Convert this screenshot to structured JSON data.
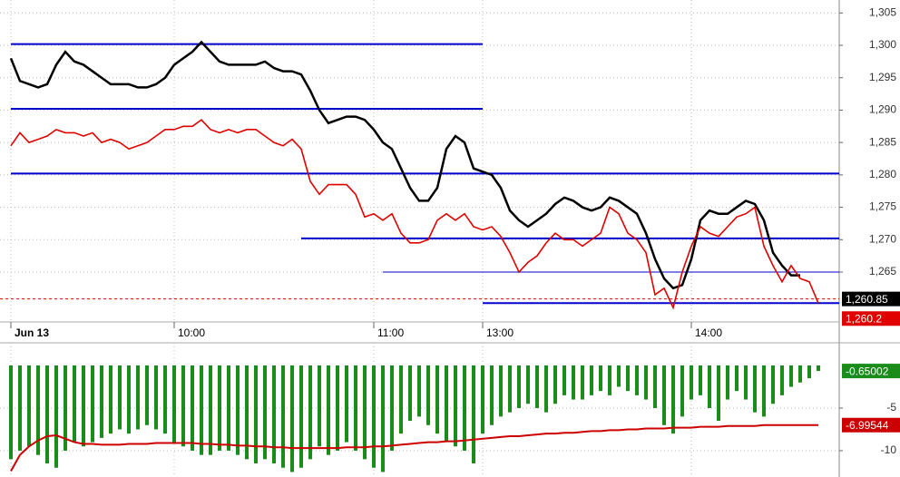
{
  "chart_data": [
    {
      "type": "line",
      "categories": [
        "Jun 13",
        null,
        null,
        null,
        null,
        null,
        null,
        null,
        null,
        null,
        null,
        null,
        null,
        null,
        null,
        null,
        null,
        null,
        "10:00",
        null,
        null,
        null,
        null,
        null,
        null,
        null,
        null,
        null,
        null,
        null,
        null,
        null,
        null,
        null,
        null,
        null,
        null,
        null,
        null,
        null,
        "11:00",
        null,
        null,
        null,
        null,
        null,
        null,
        null,
        null,
        null,
        null,
        null,
        "13:00",
        null,
        null,
        null,
        null,
        null,
        null,
        null,
        null,
        null,
        null,
        null,
        null,
        null,
        null,
        null,
        null,
        null,
        null,
        null,
        null,
        null,
        null,
        "14:00",
        null,
        null,
        null,
        null,
        null,
        null,
        null,
        null,
        null,
        null,
        null,
        null,
        null,
        null
      ],
      "series": [
        {
          "color": "#000000",
          "values": [
            1298,
            1294.5,
            1294,
            1293.5,
            1294,
            1297,
            1299,
            1297.5,
            1297,
            1296,
            1295,
            1294,
            1294,
            1294,
            1293.5,
            1293.5,
            1294,
            1295,
            1297,
            1298,
            1299,
            1300.5,
            1299,
            1297.5,
            1297,
            1297,
            1297,
            1297,
            1297.5,
            1296.5,
            1296,
            1296,
            1295.5,
            1293,
            1290,
            1288,
            1288.5,
            1289,
            1289,
            1288.5,
            1287,
            1285,
            1284,
            1281,
            1278,
            1276,
            1276,
            1278,
            1284,
            1286,
            1285,
            1281,
            1280.5,
            1280,
            1278,
            1274.5,
            1273,
            1272,
            1273,
            1274,
            1275.5,
            1276.5,
            1276,
            1275,
            1274.5,
            1275,
            1276.5,
            1276,
            1275,
            1274,
            1271,
            1267,
            1264,
            1262.5,
            1263,
            1267,
            1273,
            1274.5,
            1274,
            1274,
            1275,
            1276,
            1275.5,
            1273,
            1268,
            1266,
            1264.5,
            1264.5,
            null,
            null
          ]
        },
        {
          "color": "#e00000",
          "values": [
            1284.5,
            1286.5,
            1285,
            1285.5,
            1286,
            1287,
            1286.5,
            1286.5,
            1286,
            1286.5,
            1285,
            1285.5,
            1285,
            1284,
            1284.5,
            1285,
            1286,
            1287,
            1287,
            1287.5,
            1287.5,
            1288.5,
            1287,
            1286.5,
            1287,
            1286.5,
            1287,
            1287,
            1286,
            1285,
            1284.5,
            1285.5,
            1284,
            1279,
            1277,
            1278.5,
            1278.5,
            1278.5,
            1277,
            1273.5,
            1274,
            1273,
            1274,
            1271,
            1269.5,
            1269.5,
            1270,
            1273,
            1274,
            1273,
            1274,
            1272,
            1271.5,
            1272,
            1270.5,
            1268,
            1265,
            1266.5,
            1267.5,
            1269.5,
            1271,
            1270,
            1270,
            1269,
            1270,
            1271,
            1275,
            1274,
            1271,
            1270,
            1268,
            1261.5,
            1262.5,
            1259.5,
            1265,
            1269,
            1272,
            1271,
            1270.5,
            1272,
            1273.5,
            1274,
            1275,
            1269,
            1266,
            1263.5,
            1266,
            1264,
            1263.5,
            1260.2
          ]
        }
      ],
      "hlines": [
        {
          "value": 1300.2,
          "from": 0,
          "to": 52,
          "color": "#0000cc"
        },
        {
          "value": 1290.2,
          "from": 0,
          "to": 52,
          "color": "#0000cc"
        },
        {
          "value": 1280.2,
          "from": 0,
          "to": 89,
          "color": "#0000cc"
        },
        {
          "value": 1270.2,
          "from": 32,
          "to": 89,
          "color": "#0000cc"
        },
        {
          "value": 1265,
          "from": 41,
          "to": 89,
          "color": "#0000cc"
        },
        {
          "value": 1260.2,
          "from": 52,
          "to": 89,
          "color": "#0000cc"
        }
      ],
      "price_tags": [
        {
          "value": 1260.85,
          "label": "1,260.85",
          "color": "#000000"
        },
        {
          "value": 1260.2,
          "label": "1,260.2",
          "color": "#e00000"
        }
      ],
      "ylim": [
        1257.3,
        1307
      ],
      "yticks": [
        {
          "value": 1305,
          "label": "1,305"
        },
        {
          "value": 1300,
          "label": "1,300"
        },
        {
          "value": 1295,
          "label": "1,295"
        },
        {
          "value": 1290,
          "label": "1,290"
        },
        {
          "value": 1285,
          "label": "1,285"
        },
        {
          "value": 1280,
          "label": "1,280"
        },
        {
          "value": 1275,
          "label": "1,275"
        },
        {
          "value": 1270,
          "label": "1,270"
        },
        {
          "value": 1265,
          "label": "1,265"
        }
      ],
      "grid": true
    },
    {
      "type": "bar",
      "series": [
        {
          "color": "#1a8c1a",
          "values": [
            -11,
            -10,
            -9.5,
            -10.5,
            -11.5,
            -12,
            -10,
            -9,
            -9.5,
            -9,
            -8.5,
            -8,
            -7.5,
            -8,
            -7.5,
            -7,
            -7.5,
            -8,
            -9,
            -9.5,
            -10,
            -10.5,
            -10.5,
            -10,
            -10,
            -10.5,
            -11,
            -11.5,
            -11,
            -11.5,
            -12,
            -12.5,
            -12,
            -11,
            -9.5,
            -10.5,
            -10,
            -9,
            -10,
            -11,
            -12,
            -12.5,
            -10,
            -8,
            -6.5,
            -6,
            -7,
            -8,
            -9,
            -9.5,
            -10,
            -11.5,
            -8,
            -7,
            -6,
            -5.5,
            -5,
            -4.5,
            -5,
            -5.5,
            -4.5,
            -3.5,
            -4,
            -4,
            -3.5,
            -3,
            -3.5,
            -2.5,
            -3,
            -3.5,
            -4,
            -5,
            -7,
            -8,
            -6,
            -4,
            -3.5,
            -5,
            -6.5,
            -4,
            -3,
            -4,
            -5.5,
            -6,
            -4.5,
            -3.5,
            -2.5,
            -2,
            -1.5,
            -0.65002
          ]
        },
        {
          "type": "line",
          "color": "#cc0000",
          "values": [
            -12.4,
            -10.5,
            -9.5,
            -8.8,
            -8.3,
            -8.2,
            -8.6,
            -9,
            -9.2,
            -9.2,
            -9.3,
            -9.3,
            -9.3,
            -9.2,
            -9.2,
            -9.2,
            -9.1,
            -9.1,
            -9.1,
            -9.1,
            -9.1,
            -9.2,
            -9.2,
            -9.3,
            -9.3,
            -9.4,
            -9.4,
            -9.5,
            -9.5,
            -9.6,
            -9.6,
            -9.7,
            -9.7,
            -9.7,
            -9.7,
            -9.7,
            -9.7,
            -9.6,
            -9.6,
            -9.6,
            -9.5,
            -9.5,
            -9.4,
            -9.3,
            -9.2,
            -9.1,
            -9.0,
            -9.0,
            -8.9,
            -8.9,
            -8.8,
            -8.7,
            -8.6,
            -8.5,
            -8.4,
            -8.3,
            -8.3,
            -8.2,
            -8.1,
            -8.0,
            -8.0,
            -7.9,
            -7.9,
            -7.8,
            -7.7,
            -7.7,
            -7.6,
            -7.6,
            -7.5,
            -7.5,
            -7.4,
            -7.4,
            -7.4,
            -7.3,
            -7.3,
            -7.3,
            -7.2,
            -7.2,
            -7.2,
            -7.1,
            -7.1,
            -7.1,
            -7.1,
            -7.0,
            -7.0,
            -7.0,
            -7.0,
            -7.0,
            -7.0,
            -6.99544
          ]
        }
      ],
      "ylim": [
        -13.09,
        2.66
      ],
      "yticks": [
        -5,
        -10
      ],
      "grid": true
    }
  ]
}
